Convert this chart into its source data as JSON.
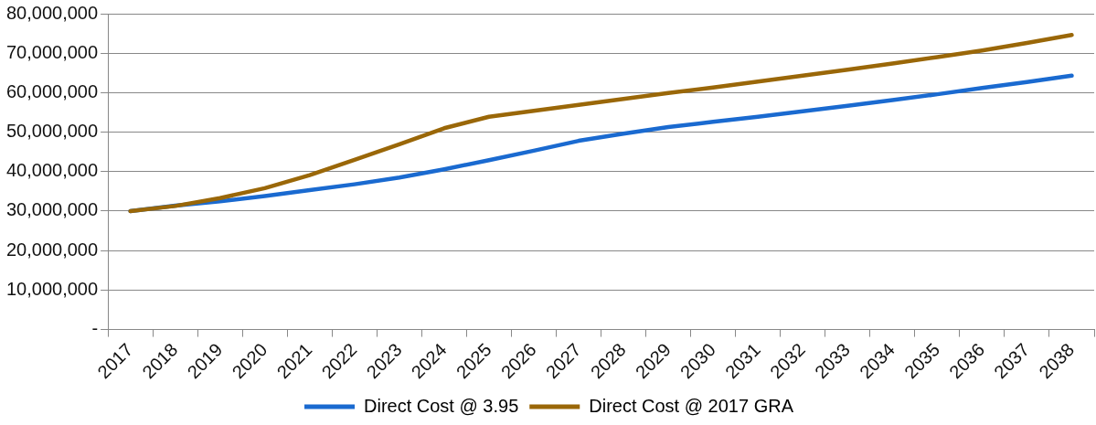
{
  "chart_data": {
    "type": "line",
    "categories": [
      "2017",
      "2018",
      "2019",
      "2020",
      "2021",
      "2022",
      "2023",
      "2024",
      "2025",
      "2026",
      "2027",
      "2028",
      "2029",
      "2030",
      "2031",
      "2032",
      "2033",
      "2034",
      "2035",
      "2036",
      "2037",
      "2038"
    ],
    "series": [
      {
        "name": "Direct Cost @ 3.95",
        "color": "#1a6ad0",
        "values": [
          30000000,
          31400000,
          32500000,
          33800000,
          35300000,
          36800000,
          38500000,
          40600000,
          42900000,
          45300000,
          47800000,
          49600000,
          51300000,
          52600000,
          53900000,
          55300000,
          56700000,
          58100000,
          59600000,
          61200000,
          62700000,
          64300000
        ]
      },
      {
        "name": "Direct Cost @ 2017 GRA",
        "color": "#9a6708",
        "values": [
          30000000,
          31300000,
          33300000,
          35800000,
          39100000,
          43000000,
          46900000,
          51000000,
          53900000,
          55400000,
          56900000,
          58400000,
          59900000,
          61300000,
          62800000,
          64300000,
          65800000,
          67400000,
          69000000,
          70700000,
          72600000,
          74600000
        ]
      }
    ],
    "ylim": [
      0,
      80000000
    ],
    "yticks": [
      {
        "value": 0,
        "label": "-"
      },
      {
        "value": 10000000,
        "label": "10,000,000"
      },
      {
        "value": 20000000,
        "label": "20,000,000"
      },
      {
        "value": 30000000,
        "label": "30,000,000"
      },
      {
        "value": 40000000,
        "label": "40,000,000"
      },
      {
        "value": 50000000,
        "label": "50,000,000"
      },
      {
        "value": 60000000,
        "label": "60,000,000"
      },
      {
        "value": 70000000,
        "label": "70,000,000"
      },
      {
        "value": 80000000,
        "label": "80,000,000"
      }
    ],
    "grid": "y",
    "legend": "bottom",
    "marker": "none",
    "line_style": "solid"
  }
}
